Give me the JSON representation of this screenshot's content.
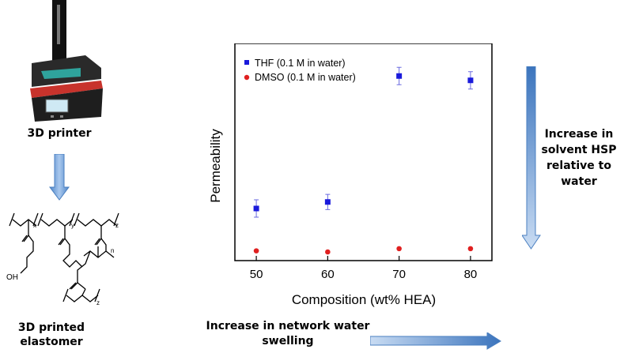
{
  "left_panel": {
    "printer_label": "3D printer",
    "elastomer_label_line1": "3D printed",
    "elastomer_label_line2": "elastomer",
    "chem_labels": {
      "x": "x",
      "y": "y",
      "z": "z",
      "n": "n",
      "oh": "OH",
      "z2": "z"
    }
  },
  "right_panel": {
    "hsp_label_line1": "Increase in",
    "hsp_label_line2": "solvent HSP",
    "hsp_label_line3": "relative to",
    "hsp_label_line4": "water"
  },
  "bottom": {
    "swelling_line1": "Increase in network water",
    "swelling_line2": "swelling"
  },
  "colors": {
    "thf": "#1a1adb",
    "dmso": "#e02020",
    "arrow": "#6fa3dc"
  },
  "chart_data": {
    "type": "scatter",
    "title": "",
    "xlabel": "Composition (wt% HEA)",
    "ylabel": "Permeability",
    "xlim": [
      47,
      83
    ],
    "ylim": [
      0,
      1
    ],
    "x_ticks": [
      50,
      60,
      70,
      80
    ],
    "x_tick_labels": [
      "50",
      "60",
      "70",
      "80"
    ],
    "y_ticks_shown": false,
    "legend_position": "top-left",
    "series": [
      {
        "name": "THF (0.1 M in water)",
        "marker": "square",
        "color": "#1a1adb",
        "x": [
          50,
          60,
          70,
          80
        ],
        "y": [
          0.24,
          0.27,
          0.85,
          0.83
        ],
        "err": [
          0.04,
          0.035,
          0.04,
          0.04
        ]
      },
      {
        "name": "DMSO (0.1 M in water)",
        "marker": "circle",
        "color": "#e02020",
        "x": [
          50,
          60,
          70,
          80
        ],
        "y": [
          0.045,
          0.04,
          0.055,
          0.055
        ],
        "err": [
          0,
          0,
          0,
          0
        ]
      }
    ]
  }
}
